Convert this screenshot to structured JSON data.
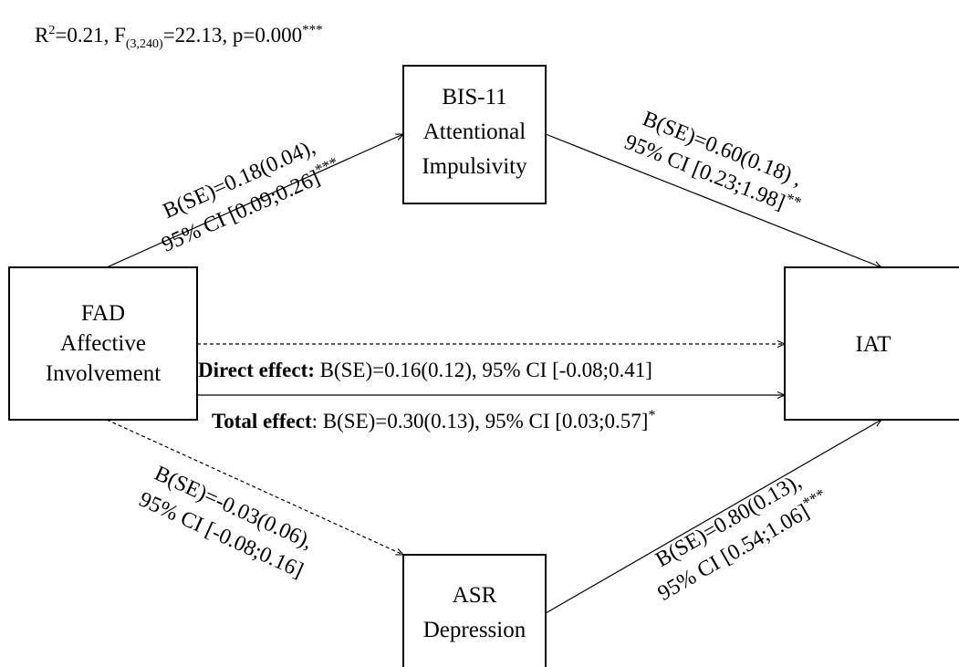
{
  "model_stats": {
    "r_label": "R",
    "r_sup": "2",
    "r_rest": "=0.21, F",
    "f_sub": "(3,240)",
    "f_rest": "=22.13, p=0.000",
    "stars": "***"
  },
  "nodes": {
    "fad": {
      "lines": [
        "FAD",
        "Affective",
        "Involvement"
      ]
    },
    "bis": {
      "lines": [
        "BIS-11",
        "Attentional",
        "Impulsivity"
      ]
    },
    "iat": {
      "lines": [
        "IAT"
      ]
    },
    "asr": {
      "lines": [
        "ASR",
        "Depression"
      ]
    }
  },
  "paths": {
    "fad_to_bis": {
      "line1": "B(SE)=0.18(0.04),",
      "line2_text": "95% CI [0.09;0.26]",
      "line2_stars": "***"
    },
    "bis_to_iat": {
      "line1": "B(SE)=0.60(0.18) ,",
      "line2_text": "95% CI [0.23;1.98]",
      "line2_stars": "**"
    },
    "fad_to_asr": {
      "line1": "B(SE)=-0.03(0.06),",
      "line2_text": "95% CI [-0.08;0.16]",
      "line2_stars": ""
    },
    "asr_to_iat": {
      "line1": "B(SE)=0.80(0.13),",
      "line2_text": "95% CI [0.54;1.06]",
      "line2_stars": "***"
    }
  },
  "direct_effect": {
    "label": "Direct effect:",
    "value": " B(SE)=0.16(0.12), 95% CI [-0.08;0.41]"
  },
  "total_effect": {
    "label": "Total effect",
    "value": ": B(SE)=0.30(0.13), 95% CI [0.03;0.57]",
    "stars": "*"
  },
  "colors": {
    "line": "#000000",
    "background": "#ffffff"
  }
}
